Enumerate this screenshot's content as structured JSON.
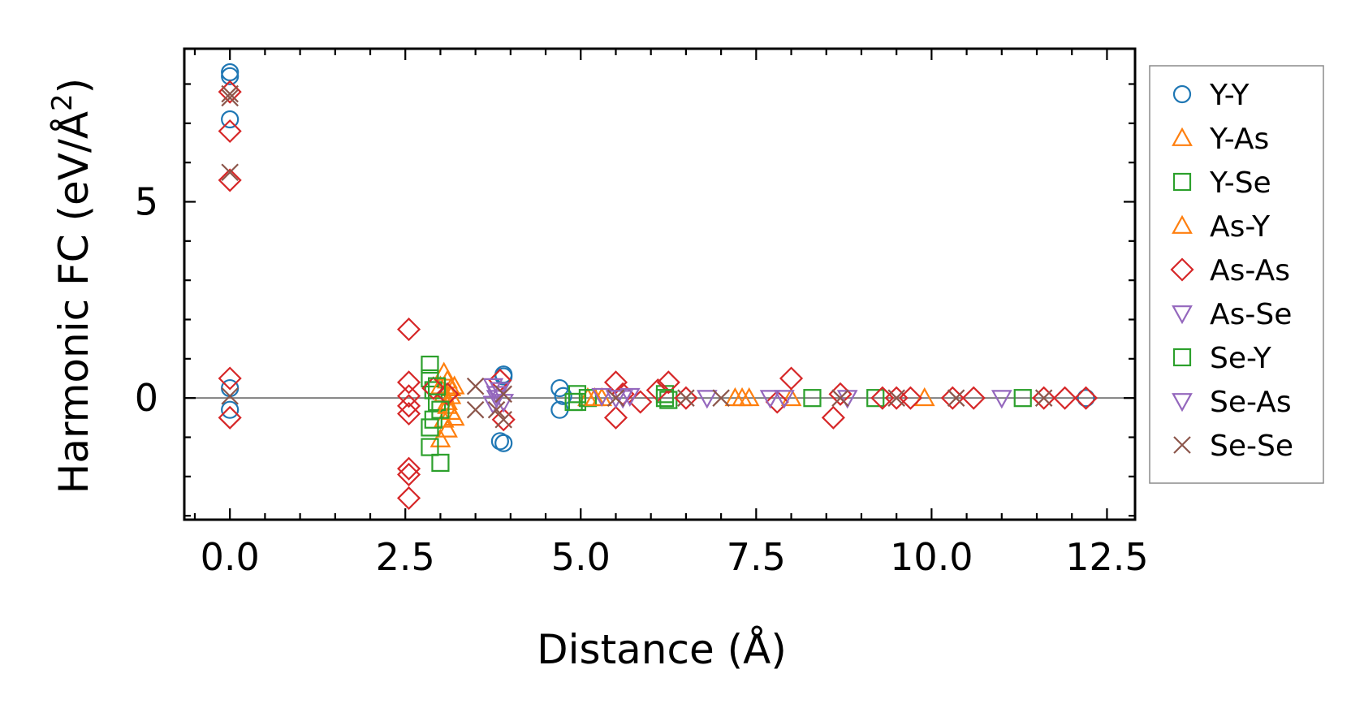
{
  "chart_data": {
    "type": "scatter",
    "xlabel": "Distance (Å)",
    "ylabel": "Harmonic FC (eV/Å",
    "ylabel_sup": "2",
    "ylabel_end": ")",
    "xlim": [
      -0.65,
      12.9
    ],
    "ylim": [
      -3.1,
      8.9
    ],
    "x_ticks": [
      0.0,
      2.5,
      5.0,
      7.5,
      10.0,
      12.5
    ],
    "x_tick_labels": [
      "0.0",
      "2.5",
      "5.0",
      "7.5",
      "10.0",
      "12.5"
    ],
    "y_ticks": [
      0,
      5
    ],
    "y_tick_labels": [
      "0",
      "5"
    ],
    "reference_line_y": 0,
    "legend_position": "outside-right",
    "series": [
      {
        "name": "Y-Y",
        "marker": "circle",
        "color": "#1f77b4",
        "points": [
          [
            0,
            8.3
          ],
          [
            0,
            8.2
          ],
          [
            0,
            7.1
          ],
          [
            0,
            0.25
          ],
          [
            0,
            -0.3
          ],
          [
            3.9,
            0.55
          ],
          [
            3.9,
            0.6
          ],
          [
            3.85,
            -1.1
          ],
          [
            3.9,
            -1.15
          ],
          [
            4.7,
            0.25
          ],
          [
            4.7,
            -0.3
          ],
          [
            4.75,
            0.05
          ],
          [
            12.2,
            0.0
          ]
        ]
      },
      {
        "name": "Y-As",
        "marker": "triangle-up",
        "color": "#ff7f0e",
        "points": [
          [
            3.05,
            0.65
          ],
          [
            3.1,
            0.45
          ],
          [
            3.15,
            0.25
          ],
          [
            3.05,
            0.1
          ],
          [
            3.1,
            -0.1
          ],
          [
            3.15,
            -0.35
          ],
          [
            3.05,
            -0.55
          ],
          [
            3.1,
            -0.8
          ],
          [
            3.0,
            -1.05
          ],
          [
            3.2,
            0.3
          ],
          [
            3.2,
            -0.5
          ],
          [
            5.1,
            0.0
          ],
          [
            5.3,
            0.0
          ],
          [
            7.3,
            0.0
          ],
          [
            7.4,
            0.0
          ]
        ]
      },
      {
        "name": "Y-Se",
        "marker": "square",
        "color": "#2ca02c",
        "points": [
          [
            2.85,
            0.85
          ],
          [
            2.85,
            0.5
          ],
          [
            2.9,
            0.2
          ],
          [
            2.95,
            -0.1
          ],
          [
            2.9,
            -0.55
          ],
          [
            2.85,
            -0.75
          ],
          [
            2.85,
            -1.25
          ],
          [
            3.0,
            -1.65
          ],
          [
            4.95,
            0.1
          ],
          [
            4.95,
            -0.1
          ],
          [
            5.1,
            0.0
          ],
          [
            6.2,
            0.1
          ],
          [
            6.25,
            -0.05
          ],
          [
            8.3,
            0.0
          ],
          [
            9.2,
            0.0
          ]
        ]
      },
      {
        "name": "As-Y",
        "marker": "triangle-up",
        "color": "#ff7f0e",
        "points": [
          [
            3.0,
            0.3
          ],
          [
            3.1,
            -0.2
          ],
          [
            3.15,
            0.05
          ],
          [
            5.2,
            0.0
          ],
          [
            7.2,
            0.0
          ],
          [
            8.0,
            0.0
          ],
          [
            9.9,
            0.0
          ]
        ]
      },
      {
        "name": "As-As",
        "marker": "diamond",
        "color": "#d62728",
        "points": [
          [
            0,
            7.8
          ],
          [
            0,
            6.8
          ],
          [
            0,
            5.55
          ],
          [
            0,
            0.5
          ],
          [
            0,
            -0.5
          ],
          [
            2.55,
            1.75
          ],
          [
            2.55,
            0.4
          ],
          [
            2.55,
            0.05
          ],
          [
            2.55,
            -0.2
          ],
          [
            2.55,
            -0.4
          ],
          [
            2.55,
            -1.8
          ],
          [
            2.55,
            -1.95
          ],
          [
            2.55,
            -2.55
          ],
          [
            2.9,
            0.25
          ],
          [
            3.1,
            0.1
          ],
          [
            3.85,
            0.45
          ],
          [
            3.9,
            -0.55
          ],
          [
            5.5,
            0.4
          ],
          [
            5.5,
            -0.5
          ],
          [
            5.6,
            0.1
          ],
          [
            5.85,
            -0.1
          ],
          [
            6.1,
            0.2
          ],
          [
            6.25,
            0.4
          ],
          [
            6.5,
            0.0
          ],
          [
            7.8,
            -0.1
          ],
          [
            8.0,
            0.5
          ],
          [
            8.6,
            -0.5
          ],
          [
            8.7,
            0.1
          ],
          [
            9.3,
            0.0
          ],
          [
            9.5,
            0.0
          ],
          [
            9.7,
            0.0
          ],
          [
            10.3,
            0.0
          ],
          [
            10.6,
            0.0
          ],
          [
            11.6,
            0.0
          ],
          [
            11.9,
            0.0
          ],
          [
            12.2,
            0.0
          ]
        ]
      },
      {
        "name": "As-Se",
        "marker": "triangle-down",
        "color": "#9467bd",
        "points": [
          [
            3.75,
            0.3
          ],
          [
            3.85,
            0.2
          ],
          [
            3.8,
            0.0
          ],
          [
            3.75,
            -0.15
          ],
          [
            5.3,
            0.05
          ],
          [
            5.5,
            0.0
          ],
          [
            5.7,
            0.05
          ],
          [
            6.8,
            0.0
          ],
          [
            7.7,
            0.0
          ],
          [
            8.8,
            0.0
          ],
          [
            11.0,
            0.0
          ]
        ]
      },
      {
        "name": "Se-Y",
        "marker": "square",
        "color": "#2ca02c",
        "points": [
          [
            2.95,
            0.3
          ],
          [
            3.0,
            -0.3
          ],
          [
            4.9,
            -0.1
          ],
          [
            6.2,
            0.0
          ],
          [
            11.3,
            0.0
          ]
        ]
      },
      {
        "name": "Se-As",
        "marker": "triangle-down",
        "color": "#9467bd",
        "points": [
          [
            3.8,
            0.1
          ],
          [
            3.9,
            -0.1
          ],
          [
            5.6,
            0.0
          ],
          [
            7.9,
            0.0
          ]
        ]
      },
      {
        "name": "Se-Se",
        "marker": "x",
        "color": "#8c564b",
        "points": [
          [
            0,
            7.75
          ],
          [
            0,
            7.65
          ],
          [
            0,
            5.75
          ],
          [
            0,
            0.05
          ],
          [
            3.5,
            0.3
          ],
          [
            3.5,
            -0.3
          ],
          [
            3.8,
            -0.3
          ],
          [
            3.9,
            0.1
          ],
          [
            3.9,
            -0.55
          ],
          [
            5.5,
            0.0
          ],
          [
            6.5,
            0.0
          ],
          [
            7.0,
            0.0
          ],
          [
            8.7,
            0.0
          ],
          [
            9.5,
            0.0
          ],
          [
            10.35,
            0.0
          ],
          [
            11.6,
            0.0
          ]
        ]
      }
    ]
  }
}
